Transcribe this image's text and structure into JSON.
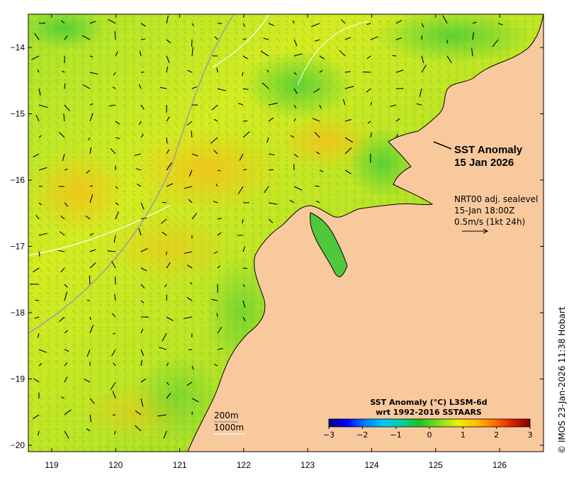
{
  "map": {
    "title_line1": "SST Anomaly",
    "title_line2": "15 Jan 2026",
    "current_label_line1": "NRT00 adj. sealevel",
    "current_label_line2": "15-Jan 18:00Z",
    "current_label_line3": "0.5m/s (1kt 24h)",
    "contour_200": "200m",
    "contour_1000": "1000m",
    "colorbar_title_line1": "SST Anomaly (°C) L3SM-6d",
    "colorbar_title_line2": "wrt 1992-2016 SSTAARS",
    "credit": "© IMOS 23-Jan-2026 11:38 Hobart",
    "land_color": "#f9c99e",
    "ocean_base_color": "#9bdc2a",
    "lon_ticks": [
      "119",
      "120",
      "121",
      "122",
      "123",
      "124",
      "125",
      "126"
    ],
    "lat_ticks": [
      "−14",
      "−15",
      "−16",
      "−17",
      "−18",
      "−19",
      "−20"
    ],
    "colorbar_ticks": [
      "−3",
      "−2",
      "−1",
      "0",
      "1",
      "2",
      "3"
    ],
    "colorbar_stops": [
      "#000080",
      "#0000ff",
      "#0080ff",
      "#00c8ff",
      "#00d0a0",
      "#20c020",
      "#80e020",
      "#e8f000",
      "#ffc000",
      "#ff7000",
      "#e02000",
      "#800000"
    ]
  },
  "chart_data": {
    "type": "heatmap",
    "xlim": [
      118.6,
      126.7
    ],
    "ylim": [
      -20.1,
      -13.5
    ],
    "xlabel": "",
    "ylabel": "",
    "colorbar_range": [
      -3,
      3
    ],
    "legend_placement": "bottom-right"
  }
}
